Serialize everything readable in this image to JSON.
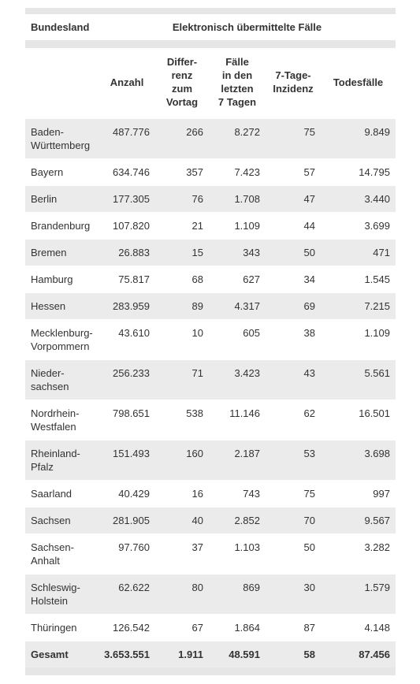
{
  "header": {
    "first": "Bundesland",
    "group": "Elektronisch übermittelte Fälle"
  },
  "columns": [
    "Anzahl",
    "Differ-\nrenz\nzum\nVortag",
    "Fälle\nin den\nletzten\n7 Tagen",
    "7-Tage-\nInzidenz",
    "Todesfälle"
  ],
  "rows": [
    [
      "Baden-\nWürttemberg",
      "487.776",
      "266",
      "8.272",
      "75",
      "9.849"
    ],
    [
      "Bayern",
      "634.746",
      "357",
      "7.423",
      "57",
      "14.795"
    ],
    [
      "Berlin",
      "177.305",
      "76",
      "1.708",
      "47",
      "3.440"
    ],
    [
      "Brandenburg",
      "107.820",
      "21",
      "1.109",
      "44",
      "3.699"
    ],
    [
      "Bremen",
      "26.883",
      "15",
      "343",
      "50",
      "471"
    ],
    [
      "Hamburg",
      "75.817",
      "68",
      "627",
      "34",
      "1.545"
    ],
    [
      "Hessen",
      "283.959",
      "89",
      "4.317",
      "69",
      "7.215"
    ],
    [
      "Mecklenburg-\nVorpommern",
      "43.610",
      "10",
      "605",
      "38",
      "1.109"
    ],
    [
      "Nieder-\nsachsen",
      "256.233",
      "71",
      "3.423",
      "43",
      "5.561"
    ],
    [
      "Nordrhein-\nWestfalen",
      "798.651",
      "538",
      "11.146",
      "62",
      "16.501"
    ],
    [
      "Rheinland-\nPfalz",
      "151.493",
      "160",
      "2.187",
      "53",
      "3.698"
    ],
    [
      "Saarland",
      "40.429",
      "16",
      "743",
      "75",
      "997"
    ],
    [
      "Sachsen",
      "281.905",
      "40",
      "2.852",
      "70",
      "9.567"
    ],
    [
      "Sachsen-\nAnhalt",
      "97.760",
      "37",
      "1.103",
      "50",
      "3.282"
    ],
    [
      "Schleswig-\nHolstein",
      "62.622",
      "80",
      "869",
      "30",
      "1.579"
    ],
    [
      "Thüringen",
      "126.542",
      "67",
      "1.864",
      "87",
      "4.148"
    ]
  ],
  "total": [
    "Gesamt",
    "3.653.551",
    "1.911",
    "48.591",
    "58",
    "87.456"
  ]
}
